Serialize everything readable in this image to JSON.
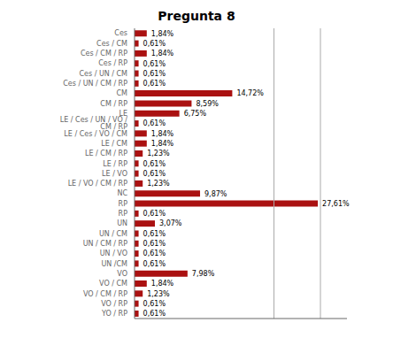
{
  "chart_data": {
    "type": "bar",
    "title": "Pregunta 8",
    "orientation": "horizontal",
    "categories": [
      "Ces",
      "Ces / CM",
      "Ces / CM / RP",
      "Ces / RP",
      "Ces / UN / CM",
      "Ces / UN / CM / RP",
      "CM",
      "CM / RP",
      "LE",
      "LE / Ces / UN / VO / CM / RP",
      "LE / Ces / VO / CM",
      "LE / CM",
      "LE / CM / RP",
      "LE / RP",
      "LE / VO",
      "LE / VO / CM / RP",
      "NC",
      "RP",
      "RP",
      "UN",
      "UN / CM",
      "UN / CM / RP",
      "UN / VO",
      "UN /CM",
      "VO",
      "VO / CM",
      "VO / CM / RP",
      "VO / RP",
      "YO / RP"
    ],
    "values": [
      1.84,
      0.61,
      1.84,
      0.61,
      0.61,
      0.61,
      14.72,
      8.59,
      6.75,
      0.61,
      1.84,
      1.84,
      1.23,
      0.61,
      0.61,
      1.23,
      9.87,
      27.61,
      0.61,
      3.07,
      0.61,
      0.61,
      0.61,
      0.61,
      7.98,
      1.84,
      1.23,
      0.61,
      0.61
    ],
    "value_labels": [
      "1,84%",
      "0,61%",
      "1,84%",
      "0,61%",
      "0,61%",
      "0,61%",
      "14,72%",
      "8,59%",
      "6,75%",
      "0,61%",
      "1,84%",
      "1,84%",
      "1,23%",
      "0,61%",
      "0,61%",
      "1,23%",
      "9,87%",
      "27,61%",
      "0,61%",
      "3,07%",
      "0,61%",
      "0,61%",
      "0,61%",
      "0,61%",
      "7,98%",
      "1,84%",
      "1,23%",
      "0,61%",
      "0,61%"
    ],
    "data_labels": true,
    "color": "#aa1111",
    "xlim": [
      0,
      32
    ],
    "vlines": [
      21,
      28
    ],
    "tick_labels": "y",
    "grid": false
  }
}
